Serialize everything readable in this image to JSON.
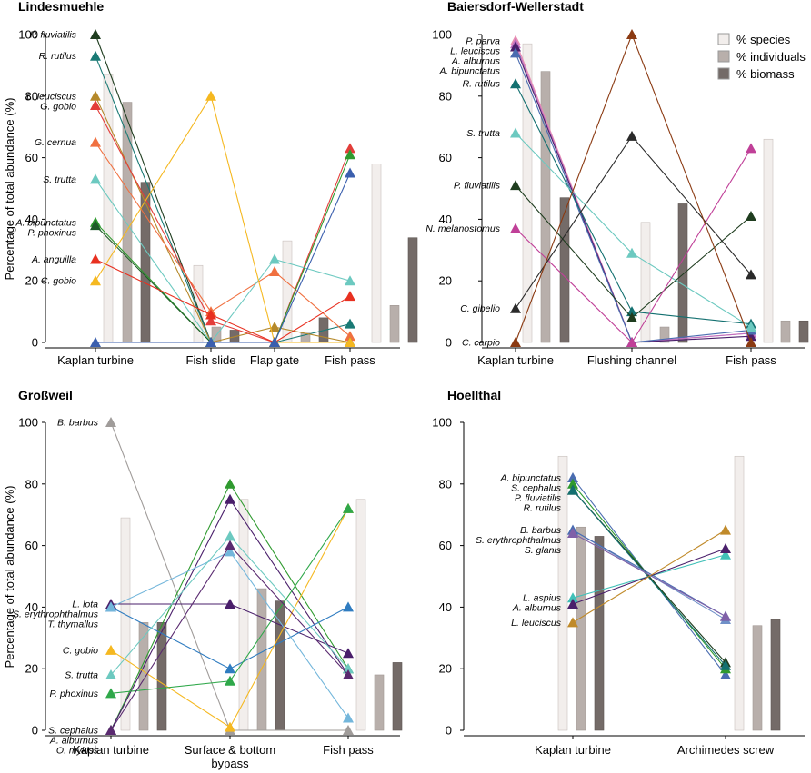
{
  "figure": {
    "ylabel": "Percentage of total abundance (%)",
    "legend": [
      {
        "name": "% species",
        "color": "#f2eeec"
      },
      {
        "name": "% individuals",
        "color": "#b8afab"
      },
      {
        "name": "% biomass",
        "color": "#746b68"
      }
    ]
  },
  "chart_data": [
    {
      "type": "line",
      "title": "Lindesmuehle",
      "categories": [
        "Kaplan turbine",
        "Fish slide",
        "Flap gate",
        "Fish pass"
      ],
      "ylim": [
        0,
        100
      ],
      "yticks": [
        0,
        20,
        40,
        60,
        80,
        100
      ],
      "bars": {
        "% species": [
          87,
          25,
          33,
          58
        ],
        "% individuals": [
          78,
          5,
          3,
          12
        ],
        "% biomass": [
          52,
          4,
          8,
          34
        ]
      },
      "series": [
        {
          "name": "P. fluviatilis",
          "color": "#1f3d1f",
          "values": [
            100,
            0,
            0,
            0
          ]
        },
        {
          "name": "R. rutilus",
          "color": "#1a7a75",
          "values": [
            93,
            0,
            0,
            6
          ]
        },
        {
          "name": "L. leuciscus",
          "color": "#b5892a",
          "values": [
            80,
            0,
            5,
            0
          ]
        },
        {
          "name": "G. gobio",
          "color": "#e33d3a",
          "values": [
            77,
            7,
            0,
            63
          ]
        },
        {
          "name": "G. cernua",
          "color": "#f07040",
          "values": [
            65,
            10,
            23,
            2
          ]
        },
        {
          "name": "S. trutta",
          "color": "#6cc9c0",
          "values": [
            53,
            0,
            27,
            20
          ]
        },
        {
          "name": "A. bipunctatus",
          "color": "#2f9a2f",
          "values": [
            39,
            0,
            0,
            61
          ]
        },
        {
          "name": "P. phoxinus",
          "color": "#1e5c28",
          "values": [
            38,
            0,
            0,
            0
          ]
        },
        {
          "name": "A. anguilla",
          "color": "#e83020",
          "values": [
            27,
            9,
            0,
            15
          ]
        },
        {
          "name": "C. gobio",
          "color": "#f5b820",
          "values": [
            20,
            80,
            0,
            0
          ]
        },
        {
          "name": "",
          "color": "#3b5fae",
          "values": [
            0,
            0,
            0,
            55
          ]
        }
      ]
    },
    {
      "type": "line",
      "title": "Baiersdorf-Wellerstadt",
      "categories": [
        "Kaplan turbine",
        "Flushing channel",
        "Fish pass"
      ],
      "ylim": [
        0,
        100
      ],
      "yticks": [
        0,
        20,
        40,
        60,
        80,
        100
      ],
      "bars": {
        "% species": [
          97,
          39,
          66
        ],
        "% individuals": [
          88,
          5,
          7
        ],
        "% biomass": [
          47,
          45,
          7
        ]
      },
      "series": [
        {
          "name": "P. parva",
          "color": "#e88fb3",
          "values": [
            98,
            0,
            3
          ]
        },
        {
          "name": "L. leuciscus",
          "color": "#c070c0",
          "values": [
            97,
            0,
            3
          ]
        },
        {
          "name": "A. alburnus",
          "color": "#4a1f6b",
          "values": [
            96,
            0,
            2
          ]
        },
        {
          "name": "A. bipunctatus",
          "color": "#4a6cb0",
          "values": [
            94,
            0,
            4
          ]
        },
        {
          "name": "R. rutilus",
          "color": "#137070",
          "values": [
            84,
            10,
            6
          ]
        },
        {
          "name": "S. trutta",
          "color": "#6cc9c0",
          "values": [
            68,
            29,
            5
          ]
        },
        {
          "name": "P. fluviatilis",
          "color": "#1f3d1f",
          "values": [
            51,
            8,
            41
          ]
        },
        {
          "name": "N. melanostomus",
          "color": "#c04098",
          "values": [
            37,
            0,
            63
          ]
        },
        {
          "name": "C. gibelio",
          "color": "#2a2a2a",
          "values": [
            11,
            67,
            22
          ]
        },
        {
          "name": "C. carpio",
          "color": "#8b3a12",
          "values": [
            0,
            100,
            0
          ]
        }
      ]
    },
    {
      "type": "line",
      "title": "Großweil",
      "categories": [
        "Kaplan turbine",
        "Surface & bottom bypass",
        "Fish pass"
      ],
      "ylim": [
        0,
        100
      ],
      "yticks": [
        0,
        20,
        40,
        60,
        80,
        100
      ],
      "bars": {
        "% species": [
          69,
          75,
          75
        ],
        "% individuals": [
          35,
          46,
          18
        ],
        "% biomass": [
          35,
          42,
          22
        ]
      },
      "series": [
        {
          "name": "B. barbus",
          "color": "#a09c9a",
          "values": [
            100,
            0,
            0
          ]
        },
        {
          "name": "S. cephalus",
          "color": "#2f9a2f",
          "values": [
            0,
            80,
            20
          ]
        },
        {
          "name": "A. alburnus",
          "color": "#4a1f6b",
          "values": [
            0,
            75,
            18
          ]
        },
        {
          "name": "L. lota",
          "color": "#4a1f6b",
          "values": [
            41,
            41,
            25
          ]
        },
        {
          "name": "S. erythrophthalmus",
          "color": "#2f7cc0",
          "values": [
            40,
            20,
            40
          ]
        },
        {
          "name": "T. thymallus",
          "color": "#73b6db",
          "values": [
            40,
            58,
            4
          ]
        },
        {
          "name": "C. gobio",
          "color": "#f5b820",
          "values": [
            26,
            1,
            72
          ]
        },
        {
          "name": "S. trutta",
          "color": "#6cc9c0",
          "values": [
            18,
            63,
            20
          ]
        },
        {
          "name": "P. phoxinus",
          "color": "#2fa84a",
          "values": [
            12,
            16,
            72
          ]
        },
        {
          "name": "O. mykiss",
          "color": "#5a2a70",
          "values": [
            0,
            60,
            18
          ]
        }
      ]
    },
    {
      "type": "line",
      "title": "Hoellthal",
      "categories": [
        "Kaplan turbine",
        "Archimedes screw"
      ],
      "ylim": [
        0,
        100
      ],
      "yticks": [
        0,
        20,
        40,
        60,
        80,
        100
      ],
      "bars": {
        "% species": [
          89,
          89
        ],
        "% individuals": [
          66,
          34
        ],
        "% biomass": [
          63,
          36
        ]
      },
      "series": [
        {
          "name": "A. bipunctatus",
          "color": "#4a6cb0",
          "values": [
            82,
            18
          ]
        },
        {
          "name": "S. cephalus",
          "color": "#2f9a2f",
          "values": [
            80,
            20
          ]
        },
        {
          "name": "P. fluviatilis",
          "color": "#1f3d1f",
          "values": [
            78,
            22
          ]
        },
        {
          "name": "R. rutilus",
          "color": "#137070",
          "values": [
            78,
            21
          ]
        },
        {
          "name": "B. barbus",
          "color": "#7090c8",
          "values": [
            65,
            36
          ]
        },
        {
          "name": "S. erythrophthalmus",
          "color": "#4a6cb0",
          "values": [
            65,
            37
          ]
        },
        {
          "name": "S. glanis",
          "color": "#8060a8",
          "values": [
            64,
            37
          ]
        },
        {
          "name": "L. aspius",
          "color": "#40c0b8",
          "values": [
            43,
            57
          ]
        },
        {
          "name": "A. alburnus",
          "color": "#4a1f6b",
          "values": [
            41,
            59
          ]
        },
        {
          "name": "L. leuciscus",
          "color": "#c08a2a",
          "values": [
            35,
            65
          ]
        }
      ]
    }
  ]
}
